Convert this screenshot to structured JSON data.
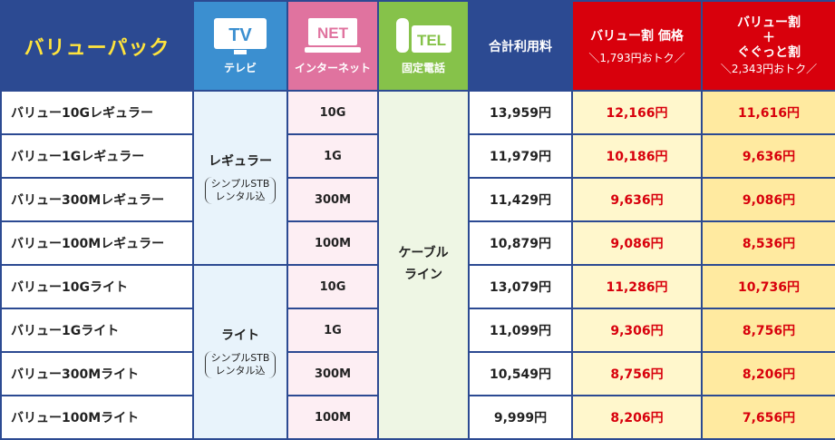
{
  "header": {
    "brand": "バリューパック",
    "tv": {
      "icon_text": "TV",
      "caption": "テレビ",
      "icon": "tv-icon"
    },
    "net": {
      "icon_text": "NET",
      "caption": "インターネット",
      "icon": "monitor-icon"
    },
    "tel": {
      "icon_text": "TEL",
      "caption": "固定電話",
      "icon": "phone-icon"
    },
    "total": "合計利用料",
    "value_price": {
      "title": "バリュー割 価格",
      "sub": "＼1,793円おトク／"
    },
    "value_plus": {
      "line1": "バリュー割",
      "line2": "＋",
      "line3": "ぐぐっと割",
      "sub": "＼2,343円おトク／"
    }
  },
  "groups": [
    {
      "label": "レギュラー",
      "note_line1": "シンプルSTB",
      "note_line2": "レンタル込"
    },
    {
      "label": "ライト",
      "note_line1": "シンプルSTB",
      "note_line2": "レンタル込"
    }
  ],
  "tel_label": {
    "line1": "ケーブル",
    "line2": "ライン"
  },
  "rows": [
    {
      "name": "バリュー10Gレギュラー",
      "net": "10G",
      "total": "13,959円",
      "value": "12,166円",
      "value_plus": "11,616円"
    },
    {
      "name": "バリュー1Gレギュラー",
      "net": "1G",
      "total": "11,979円",
      "value": "10,186円",
      "value_plus": "9,636円"
    },
    {
      "name": "バリュー300Mレギュラー",
      "net": "300M",
      "total": "11,429円",
      "value": "9,636円",
      "value_plus": "9,086円"
    },
    {
      "name": "バリュー100Mレギュラー",
      "net": "100M",
      "total": "10,879円",
      "value": "9,086円",
      "value_plus": "8,536円"
    },
    {
      "name": "バリュー10Gライト",
      "net": "10G",
      "total": "13,079円",
      "value": "11,286円",
      "value_plus": "10,736円"
    },
    {
      "name": "バリュー1Gライト",
      "net": "1G",
      "total": "11,099円",
      "value": "9,306円",
      "value_plus": "8,756円"
    },
    {
      "name": "バリュー300Mライト",
      "net": "300M",
      "total": "10,549円",
      "value": "8,756円",
      "value_plus": "8,206円"
    },
    {
      "name": "バリュー100Mライト",
      "net": "100M",
      "total": "9,999円",
      "value": "8,206円",
      "value_plus": "7,656円"
    }
  ],
  "colors": {
    "navy": "#2c4a92",
    "tv": "#3b8fd0",
    "net": "#e0739f",
    "tel": "#86c24a",
    "red": "#d8000c",
    "brand_text": "#ffe43d"
  }
}
